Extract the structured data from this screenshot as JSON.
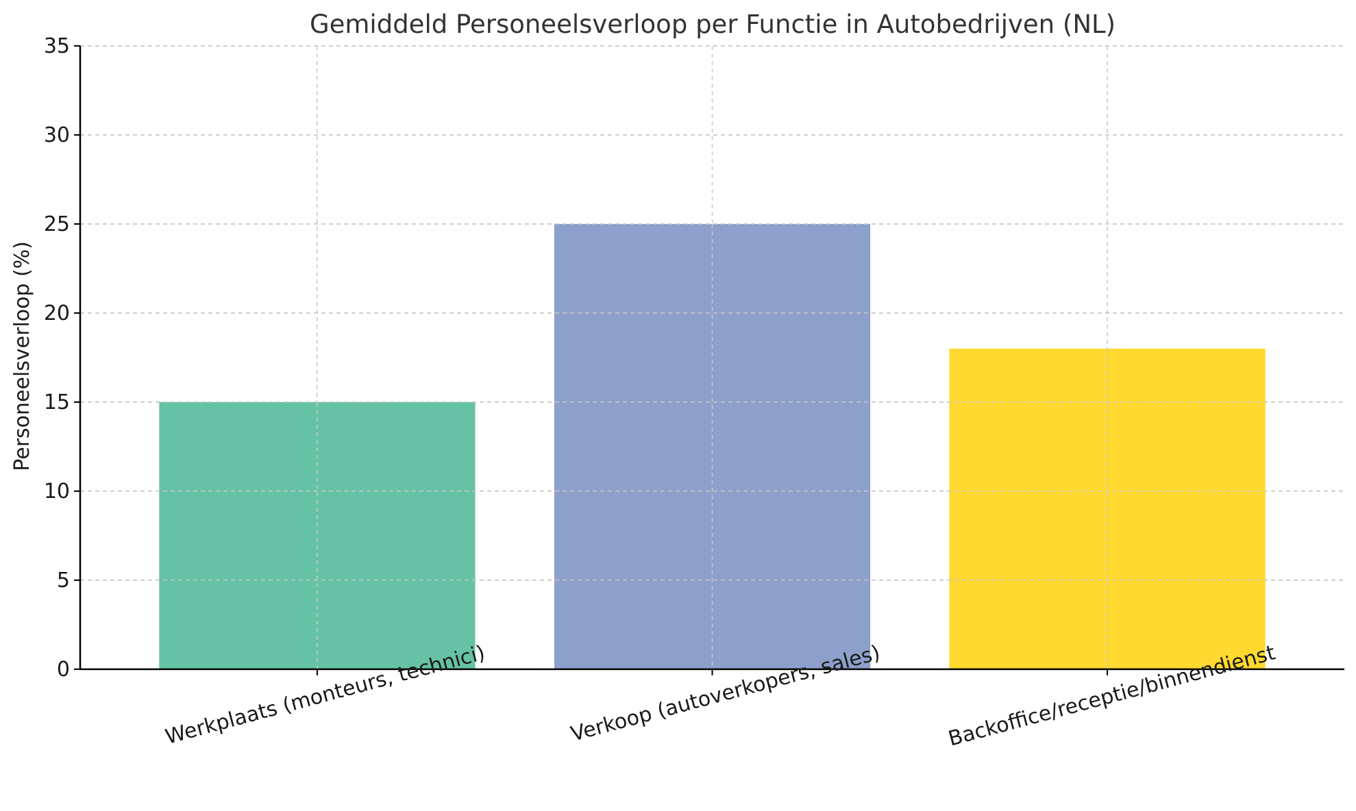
{
  "chart_data": {
    "type": "bar",
    "title": "Gemiddeld Personeelsverloop per Functie in Autobedrijven (NL)",
    "xlabel": "",
    "ylabel": "Personeelsverloop (%)",
    "categories": [
      "Werkplaats (monteurs, technici)",
      "Verkoop (autoverkopers, sales)",
      "Backoffice/receptie/binnendienst"
    ],
    "values": [
      15,
      25,
      18
    ],
    "colors": [
      "#66c2a5",
      "#8da0cb",
      "#ffd92f"
    ],
    "ylim": [
      0,
      35
    ],
    "yticks": [
      0,
      5,
      10,
      15,
      20,
      25,
      30,
      35
    ],
    "grid": true,
    "legend": "none"
  }
}
